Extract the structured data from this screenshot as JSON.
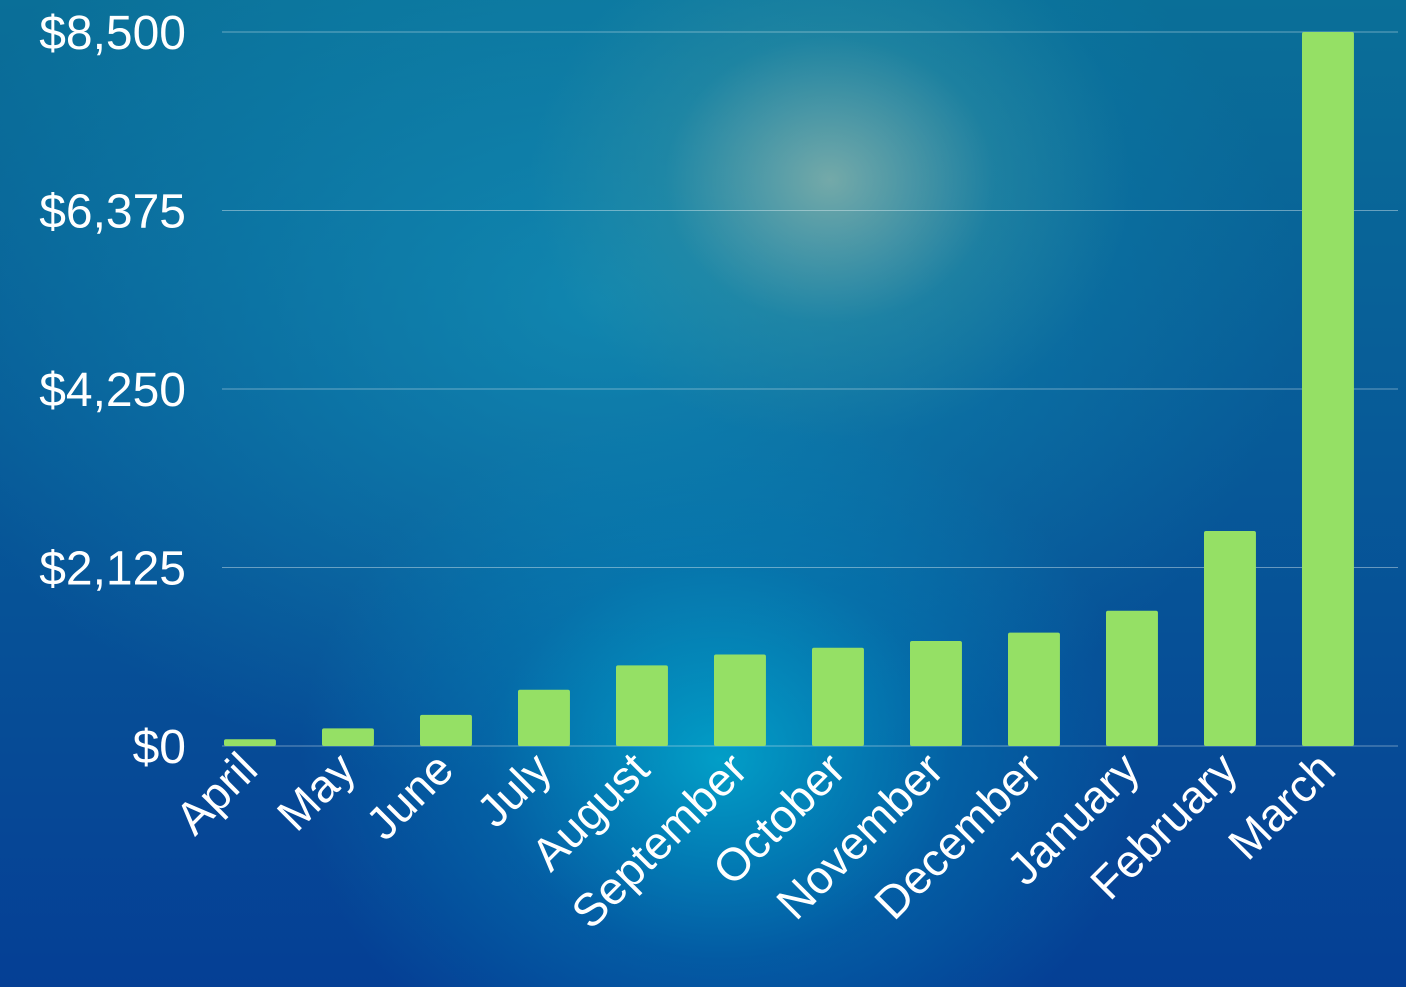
{
  "chart_data": {
    "type": "bar",
    "categories": [
      "April",
      "May",
      "June",
      "July",
      "August",
      "September",
      "October",
      "November",
      "December",
      "January",
      "February",
      "March"
    ],
    "values": [
      80,
      210,
      370,
      670,
      960,
      1090,
      1170,
      1250,
      1350,
      1610,
      2560,
      8500
    ],
    "ylim": [
      0,
      8500
    ],
    "yticks": [
      "$0",
      "$2,125",
      "$4,250",
      "$6,375",
      "$8,500"
    ],
    "ytick_values": [
      0,
      2125,
      4250,
      6375,
      8500
    ],
    "grid": true,
    "bar_color": "#95e065",
    "text_color": "#ffffff",
    "grid_color": "#9fc3d6"
  }
}
